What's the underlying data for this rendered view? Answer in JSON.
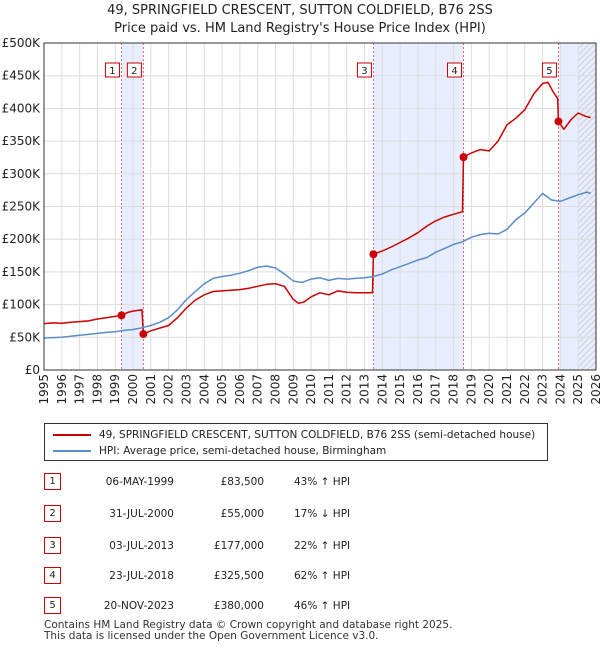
{
  "title_lines": [
    "49, SPRINGFIELD CRESCENT, SUTTON COLDFIELD, B76 2SS",
    "Price paid vs. HM Land Registry's House Price Index (HPI)"
  ],
  "colors": {
    "property": "#cc0000",
    "hpi": "#5b8cc8",
    "shade": "#e8eeff",
    "grid": "#dddddd",
    "axis": "#333333",
    "vline": "#e06666"
  },
  "chart_data": {
    "type": "line",
    "title": "49, SPRINGFIELD CRESCENT, SUTTON COLDFIELD, B76 2SS — Price paid vs. HM Land Registry's House Price Index (HPI)",
    "xlim": [
      1995,
      2026
    ],
    "ylim": [
      0,
      500000
    ],
    "x_ticks": [
      "1995",
      "1996",
      "1997",
      "1998",
      "1999",
      "2000",
      "2001",
      "2002",
      "2003",
      "2004",
      "2005",
      "2006",
      "2007",
      "2008",
      "2009",
      "2010",
      "2011",
      "2012",
      "2013",
      "2014",
      "2015",
      "2016",
      "2017",
      "2018",
      "2019",
      "2020",
      "2021",
      "2022",
      "2023",
      "2024",
      "2025",
      "2026"
    ],
    "y_ticks": [
      {
        "value": 0,
        "label": "£0"
      },
      {
        "value": 50000,
        "label": "£50K"
      },
      {
        "value": 100000,
        "label": "£100K"
      },
      {
        "value": 150000,
        "label": "£150K"
      },
      {
        "value": 200000,
        "label": "£200K"
      },
      {
        "value": 250000,
        "label": "£250K"
      },
      {
        "value": 300000,
        "label": "£300K"
      },
      {
        "value": 350000,
        "label": "£350K"
      },
      {
        "value": 400000,
        "label": "£400K"
      },
      {
        "value": 450000,
        "label": "£450K"
      },
      {
        "value": 500000,
        "label": "£500K"
      }
    ],
    "shaded_ranges": [
      [
        1999.35,
        2000.58
      ],
      [
        2013.5,
        2018.56
      ],
      [
        2023.89,
        2026
      ]
    ],
    "series": [
      {
        "name": "49, SPRINGFIELD CRESCENT, SUTTON COLDFIELD, B76 2SS (semi-detached house)",
        "color": "#cc0000",
        "x": [
          1995.0,
          1995.5,
          1996.0,
          1996.5,
          1997.0,
          1997.5,
          1998.0,
          1998.5,
          1999.0,
          1999.35,
          1999.7,
          2000.0,
          2000.5,
          2000.58,
          2001.0,
          2001.5,
          2002.0,
          2002.5,
          2003.0,
          2003.5,
          2004.0,
          2004.5,
          2005.0,
          2005.5,
          2006.0,
          2006.5,
          2007.0,
          2007.5,
          2008.0,
          2008.5,
          2009.0,
          2009.3,
          2009.6,
          2010.0,
          2010.5,
          2011.0,
          2011.5,
          2012.0,
          2012.5,
          2013.0,
          2013.45,
          2013.5,
          2014.0,
          2014.5,
          2015.0,
          2015.5,
          2016.0,
          2016.5,
          2017.0,
          2017.5,
          2018.0,
          2018.5,
          2018.56,
          2019.0,
          2019.5,
          2020.0,
          2020.5,
          2021.0,
          2021.5,
          2022.0,
          2022.5,
          2023.0,
          2023.3,
          2023.6,
          2023.85,
          2023.89,
          2024.2,
          2024.6,
          2025.0,
          2025.4,
          2025.7
        ],
        "y": [
          71000,
          72000,
          71500,
          73000,
          74000,
          75000,
          78000,
          80000,
          82000,
          83500,
          88000,
          90000,
          92000,
          55000,
          60000,
          64000,
          68000,
          80000,
          95000,
          107000,
          115000,
          120000,
          121000,
          122000,
          123000,
          125000,
          128000,
          131000,
          132000,
          128000,
          108000,
          102000,
          104000,
          112000,
          118000,
          115000,
          121000,
          119000,
          118000,
          118000,
          118000,
          177000,
          182000,
          188000,
          195000,
          202000,
          210000,
          220000,
          228000,
          234000,
          238000,
          242000,
          325500,
          332000,
          337000,
          335000,
          350000,
          375000,
          385000,
          398000,
          422000,
          438000,
          440000,
          425000,
          415000,
          380000,
          368000,
          383000,
          393000,
          388000,
          386000
        ]
      },
      {
        "name": "HPI: Average price, semi-detached house, Birmingham",
        "color": "#5b8cc8",
        "x": [
          1995.0,
          1995.5,
          1996.0,
          1996.5,
          1997.0,
          1997.5,
          1998.0,
          1998.5,
          1999.0,
          1999.5,
          2000.0,
          2000.5,
          2001.0,
          2001.5,
          2002.0,
          2002.5,
          2003.0,
          2003.5,
          2004.0,
          2004.5,
          2005.0,
          2005.5,
          2006.0,
          2006.5,
          2007.0,
          2007.5,
          2008.0,
          2008.5,
          2009.0,
          2009.5,
          2010.0,
          2010.5,
          2011.0,
          2011.5,
          2012.0,
          2012.5,
          2013.0,
          2013.5,
          2014.0,
          2014.5,
          2015.0,
          2015.5,
          2016.0,
          2016.5,
          2017.0,
          2017.5,
          2018.0,
          2018.5,
          2019.0,
          2019.5,
          2020.0,
          2020.5,
          2021.0,
          2021.5,
          2022.0,
          2022.5,
          2023.0,
          2023.5,
          2024.0,
          2024.5,
          2025.0,
          2025.5,
          2025.7
        ],
        "y": [
          49000,
          49500,
          50000,
          51500,
          53000,
          54500,
          56000,
          57500,
          58500,
          60500,
          62000,
          64500,
          68000,
          73000,
          80000,
          92000,
          108000,
          120000,
          132000,
          140000,
          143000,
          145000,
          148000,
          152000,
          157000,
          159000,
          156000,
          147000,
          136000,
          134000,
          139000,
          141000,
          137000,
          140000,
          139000,
          140000,
          141000,
          143000,
          147000,
          153000,
          158000,
          163000,
          168000,
          172000,
          180000,
          186000,
          192000,
          196000,
          203000,
          207000,
          209000,
          208000,
          215000,
          230000,
          240000,
          255000,
          270000,
          260000,
          258000,
          263000,
          268000,
          272000,
          270000
        ]
      }
    ],
    "sales": [
      {
        "id": "1",
        "x": 1999.35,
        "price": 83500
      },
      {
        "id": "2",
        "x": 2000.58,
        "price": 55000
      },
      {
        "id": "3",
        "x": 2013.5,
        "price": 177000
      },
      {
        "id": "4",
        "x": 2018.56,
        "price": 325500
      },
      {
        "id": "5",
        "x": 2023.89,
        "price": 380000
      }
    ]
  },
  "legend": {
    "property_label": "49, SPRINGFIELD CRESCENT, SUTTON COLDFIELD, B76 2SS (semi-detached house)",
    "hpi_label": "HPI: Average price, semi-detached house, Birmingham"
  },
  "sales_table": [
    {
      "id": "1",
      "date": "06-MAY-1999",
      "price": "£83,500",
      "hpi": "43% ↑ HPI"
    },
    {
      "id": "2",
      "date": "31-JUL-2000",
      "price": "£55,000",
      "hpi": "17% ↓ HPI"
    },
    {
      "id": "3",
      "date": "03-JUL-2013",
      "price": "£177,000",
      "hpi": "22% ↑ HPI"
    },
    {
      "id": "4",
      "date": "23-JUL-2018",
      "price": "£325,500",
      "hpi": "62% ↑ HPI"
    },
    {
      "id": "5",
      "date": "20-NOV-2023",
      "price": "£380,000",
      "hpi": "46% ↑ HPI"
    }
  ],
  "footer": {
    "line1": "Contains HM Land Registry data © Crown copyright and database right 2025.",
    "line2": "This data is licensed under the Open Government Licence v3.0."
  }
}
